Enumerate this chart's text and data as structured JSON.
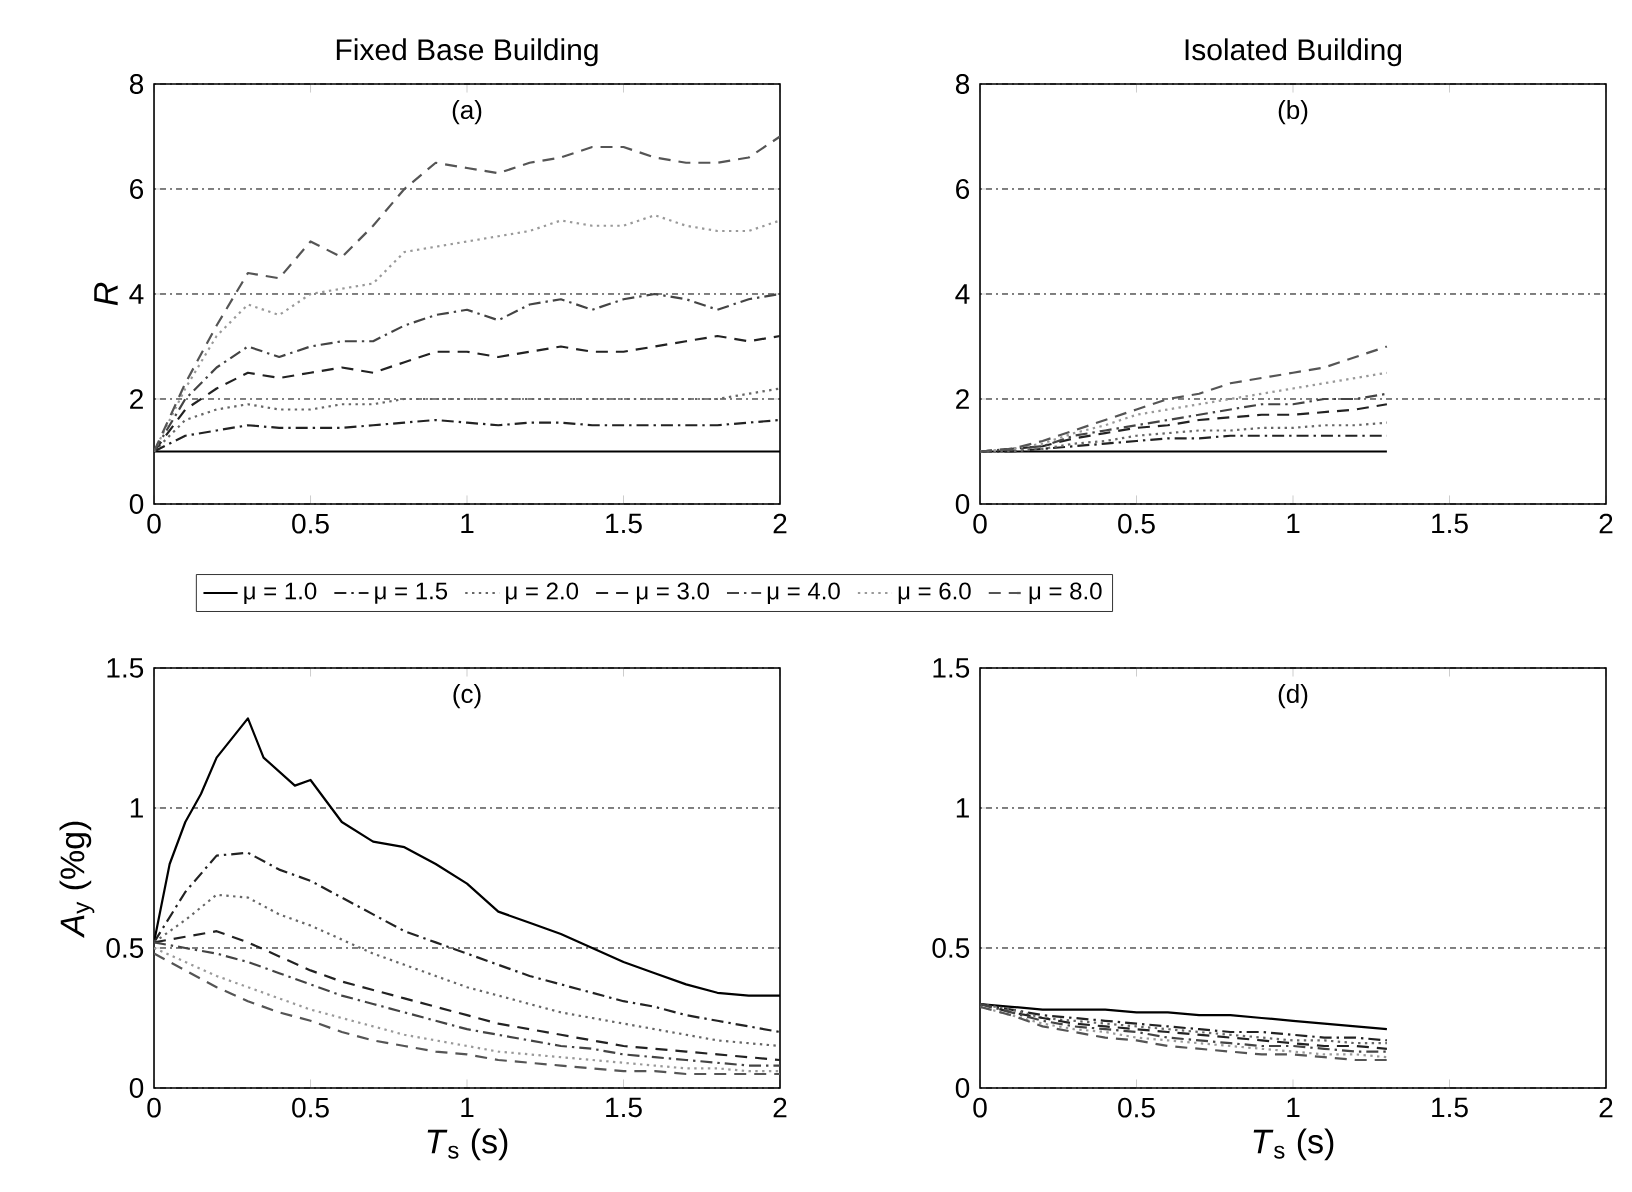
{
  "chart_data": [
    {
      "type": "line",
      "title": "Fixed Base Building",
      "ylabel": "*R*",
      "annotations": [
        "(a)"
      ],
      "xlim": [
        0,
        2
      ],
      "xticks": [
        0,
        0.5,
        1,
        1.5,
        2
      ],
      "ylim": [
        0,
        8
      ],
      "yticks": [
        0,
        2,
        4,
        6,
        8
      ],
      "grid": "y",
      "legend": "bottom",
      "x": [
        0,
        0.1,
        0.2,
        0.3,
        0.4,
        0.5,
        0.6,
        0.7,
        0.8,
        0.9,
        1.0,
        1.1,
        1.2,
        1.3,
        1.4,
        1.5,
        1.6,
        1.7,
        1.8,
        1.9,
        2.0
      ],
      "series": [
        {
          "name": "μ = 1.0",
          "color": "#000000",
          "line_style": "solid",
          "values": [
            1,
            1,
            1,
            1,
            1,
            1,
            1,
            1,
            1,
            1,
            1,
            1,
            1,
            1,
            1,
            1,
            1,
            1,
            1,
            1,
            1
          ]
        },
        {
          "name": "μ = 1.5",
          "color": "#222222",
          "line_style": "dashdot",
          "values": [
            1,
            1.3,
            1.4,
            1.5,
            1.45,
            1.45,
            1.45,
            1.5,
            1.55,
            1.6,
            1.55,
            1.5,
            1.55,
            1.55,
            1.5,
            1.5,
            1.5,
            1.5,
            1.5,
            1.55,
            1.6
          ]
        },
        {
          "name": "μ = 2.0",
          "color": "#666666",
          "line_style": "dotted",
          "values": [
            1,
            1.6,
            1.8,
            1.9,
            1.8,
            1.8,
            1.9,
            1.9,
            2.0,
            2.0,
            2.0,
            2.0,
            2.0,
            2.0,
            2.0,
            2.0,
            2.0,
            2.0,
            2.0,
            2.1,
            2.2
          ]
        },
        {
          "name": "μ = 3.0",
          "color": "#222222",
          "line_style": "dashed",
          "values": [
            1,
            1.8,
            2.2,
            2.5,
            2.4,
            2.5,
            2.6,
            2.5,
            2.7,
            2.9,
            2.9,
            2.8,
            2.9,
            3.0,
            2.9,
            2.9,
            3.0,
            3.1,
            3.2,
            3.1,
            3.2
          ]
        },
        {
          "name": "μ = 4.0",
          "color": "#444444",
          "line_style": "dashdot",
          "values": [
            1,
            2.0,
            2.6,
            3.0,
            2.8,
            3.0,
            3.1,
            3.1,
            3.4,
            3.6,
            3.7,
            3.5,
            3.8,
            3.9,
            3.7,
            3.9,
            4.0,
            3.9,
            3.7,
            3.9,
            4.0
          ]
        },
        {
          "name": "μ = 6.0",
          "color": "#999999",
          "line_style": "dotted",
          "values": [
            1,
            2.2,
            3.2,
            3.8,
            3.6,
            4.0,
            4.1,
            4.2,
            4.8,
            4.9,
            5.0,
            5.1,
            5.2,
            5.4,
            5.3,
            5.3,
            5.5,
            5.3,
            5.2,
            5.2,
            5.4
          ]
        },
        {
          "name": "μ = 8.0",
          "color": "#555555",
          "line_style": "dashed",
          "values": [
            1,
            2.3,
            3.4,
            4.4,
            4.3,
            5.0,
            4.7,
            5.3,
            6.0,
            6.5,
            6.4,
            6.3,
            6.5,
            6.6,
            6.8,
            6.8,
            6.6,
            6.5,
            6.5,
            6.6,
            7.0
          ]
        }
      ]
    },
    {
      "type": "line",
      "title": "Isolated Building",
      "annotations": [
        "(b)"
      ],
      "xlim": [
        0,
        2
      ],
      "xticks": [
        0,
        0.5,
        1,
        1.5,
        2
      ],
      "ylim": [
        0,
        8
      ],
      "yticks": [
        0,
        2,
        4,
        6,
        8
      ],
      "grid": "y",
      "x": [
        0,
        0.1,
        0.2,
        0.3,
        0.4,
        0.5,
        0.6,
        0.7,
        0.8,
        0.9,
        1.0,
        1.1,
        1.2,
        1.3
      ],
      "series": [
        {
          "color": "#000000",
          "line_style": "solid",
          "values": [
            1,
            1,
            1,
            1,
            1,
            1,
            1,
            1,
            1,
            1,
            1,
            1,
            1,
            1
          ]
        },
        {
          "color": "#222222",
          "line_style": "dashdot",
          "values": [
            1.0,
            1.0,
            1.05,
            1.1,
            1.15,
            1.2,
            1.25,
            1.25,
            1.3,
            1.3,
            1.3,
            1.3,
            1.3,
            1.3
          ]
        },
        {
          "color": "#666666",
          "line_style": "dotted",
          "values": [
            1.0,
            1.0,
            1.05,
            1.15,
            1.2,
            1.3,
            1.35,
            1.4,
            1.4,
            1.45,
            1.45,
            1.5,
            1.5,
            1.55
          ]
        },
        {
          "color": "#222222",
          "line_style": "dashed",
          "values": [
            1.0,
            1.05,
            1.1,
            1.25,
            1.35,
            1.45,
            1.5,
            1.6,
            1.65,
            1.7,
            1.7,
            1.75,
            1.8,
            1.9
          ]
        },
        {
          "color": "#444444",
          "line_style": "dashdot",
          "values": [
            1.0,
            1.05,
            1.1,
            1.3,
            1.4,
            1.5,
            1.6,
            1.7,
            1.8,
            1.9,
            1.9,
            2.0,
            2.0,
            2.1
          ]
        },
        {
          "color": "#999999",
          "line_style": "dotted",
          "values": [
            1.0,
            1.05,
            1.15,
            1.35,
            1.5,
            1.7,
            1.8,
            1.9,
            2.0,
            2.1,
            2.2,
            2.3,
            2.4,
            2.5
          ]
        },
        {
          "color": "#555555",
          "line_style": "dashed",
          "values": [
            1.0,
            1.05,
            1.2,
            1.4,
            1.6,
            1.8,
            2.0,
            2.1,
            2.3,
            2.4,
            2.5,
            2.6,
            2.8,
            3.0
          ]
        }
      ]
    },
    {
      "type": "line",
      "xlabel": "*T*$_{s}$ (s)",
      "ylabel": "*A*$_{y}$ (%g)",
      "annotations": [
        "(c)"
      ],
      "xlim": [
        0,
        2
      ],
      "xticks": [
        0,
        0.5,
        1,
        1.5,
        2
      ],
      "ylim": [
        0,
        1.5
      ],
      "yticks": [
        0,
        0.5,
        1,
        1.5
      ],
      "grid": "y",
      "x": [
        0,
        0.1,
        0.2,
        0.3,
        0.4,
        0.5,
        0.6,
        0.7,
        0.8,
        0.9,
        1.0,
        1.1,
        1.2,
        1.3,
        1.4,
        1.5,
        1.6,
        1.7,
        1.8,
        1.9,
        2.0
      ],
      "series": [
        {
          "color": "#000000",
          "line_style": "solid",
          "x": [
            0,
            0.05,
            0.1,
            0.15,
            0.2,
            0.3,
            0.35,
            0.45,
            0.5,
            0.6,
            0.7,
            0.8,
            0.9,
            1.0,
            1.1,
            1.2,
            1.3,
            1.4,
            1.5,
            1.6,
            1.7,
            1.8,
            1.9,
            2.0
          ],
          "values": [
            0.52,
            0.8,
            0.95,
            1.05,
            1.18,
            1.32,
            1.18,
            1.08,
            1.1,
            0.95,
            0.88,
            0.86,
            0.8,
            0.73,
            0.63,
            0.59,
            0.55,
            0.5,
            0.45,
            0.41,
            0.37,
            0.34,
            0.33,
            0.33
          ]
        },
        {
          "color": "#222222",
          "line_style": "dashdot",
          "values": [
            0.52,
            0.7,
            0.83,
            0.84,
            0.78,
            0.74,
            0.68,
            0.62,
            0.56,
            0.52,
            0.48,
            0.44,
            0.4,
            0.37,
            0.34,
            0.31,
            0.29,
            0.26,
            0.24,
            0.22,
            0.2
          ]
        },
        {
          "color": "#666666",
          "line_style": "dotted",
          "values": [
            0.52,
            0.6,
            0.69,
            0.68,
            0.62,
            0.58,
            0.53,
            0.48,
            0.44,
            0.4,
            0.36,
            0.33,
            0.3,
            0.27,
            0.25,
            0.23,
            0.21,
            0.19,
            0.17,
            0.16,
            0.15
          ]
        },
        {
          "color": "#222222",
          "line_style": "dashed",
          "values": [
            0.52,
            0.54,
            0.56,
            0.52,
            0.47,
            0.42,
            0.38,
            0.35,
            0.32,
            0.29,
            0.26,
            0.23,
            0.21,
            0.19,
            0.17,
            0.15,
            0.14,
            0.13,
            0.12,
            0.11,
            0.1
          ]
        },
        {
          "color": "#444444",
          "line_style": "dashdot",
          "values": [
            0.52,
            0.5,
            0.48,
            0.45,
            0.41,
            0.37,
            0.33,
            0.3,
            0.27,
            0.24,
            0.21,
            0.19,
            0.17,
            0.15,
            0.14,
            0.12,
            0.11,
            0.1,
            0.09,
            0.08,
            0.08
          ]
        },
        {
          "color": "#999999",
          "line_style": "dotted",
          "values": [
            0.5,
            0.45,
            0.4,
            0.36,
            0.32,
            0.28,
            0.25,
            0.22,
            0.19,
            0.17,
            0.15,
            0.13,
            0.12,
            0.11,
            0.1,
            0.09,
            0.08,
            0.07,
            0.07,
            0.06,
            0.06
          ]
        },
        {
          "color": "#555555",
          "line_style": "dashed",
          "values": [
            0.48,
            0.42,
            0.36,
            0.31,
            0.27,
            0.24,
            0.2,
            0.17,
            0.15,
            0.13,
            0.12,
            0.1,
            0.09,
            0.08,
            0.07,
            0.06,
            0.06,
            0.05,
            0.05,
            0.05,
            0.05
          ]
        }
      ]
    },
    {
      "type": "line",
      "xlabel": "*T*$_{s}$ (s)",
      "annotations": [
        "(d)"
      ],
      "xlim": [
        0,
        2
      ],
      "xticks": [
        0,
        0.5,
        1,
        1.5,
        2
      ],
      "ylim": [
        0,
        1.5
      ],
      "yticks": [
        0,
        0.5,
        1,
        1.5
      ],
      "grid": "y",
      "x": [
        0,
        0.1,
        0.2,
        0.3,
        0.4,
        0.5,
        0.6,
        0.7,
        0.8,
        0.9,
        1.0,
        1.1,
        1.2,
        1.3
      ],
      "series": [
        {
          "color": "#000000",
          "line_style": "solid",
          "values": [
            0.3,
            0.29,
            0.28,
            0.28,
            0.28,
            0.27,
            0.27,
            0.26,
            0.26,
            0.25,
            0.24,
            0.23,
            0.22,
            0.21
          ]
        },
        {
          "color": "#222222",
          "line_style": "dashdot",
          "values": [
            0.3,
            0.28,
            0.26,
            0.25,
            0.24,
            0.23,
            0.22,
            0.21,
            0.2,
            0.2,
            0.19,
            0.18,
            0.18,
            0.17
          ]
        },
        {
          "color": "#666666",
          "line_style": "dotted",
          "values": [
            0.3,
            0.28,
            0.25,
            0.24,
            0.23,
            0.22,
            0.21,
            0.2,
            0.19,
            0.18,
            0.17,
            0.17,
            0.16,
            0.16
          ]
        },
        {
          "color": "#222222",
          "line_style": "dashed",
          "values": [
            0.3,
            0.27,
            0.25,
            0.23,
            0.22,
            0.21,
            0.2,
            0.19,
            0.18,
            0.17,
            0.16,
            0.15,
            0.15,
            0.14
          ]
        },
        {
          "color": "#444444",
          "line_style": "dashdot",
          "values": [
            0.3,
            0.27,
            0.24,
            0.22,
            0.21,
            0.2,
            0.18,
            0.17,
            0.16,
            0.15,
            0.15,
            0.14,
            0.13,
            0.13
          ]
        },
        {
          "color": "#999999",
          "line_style": "dotted",
          "values": [
            0.29,
            0.26,
            0.23,
            0.21,
            0.2,
            0.18,
            0.17,
            0.16,
            0.15,
            0.14,
            0.13,
            0.12,
            0.12,
            0.11
          ]
        },
        {
          "color": "#555555",
          "line_style": "dashed",
          "values": [
            0.29,
            0.26,
            0.22,
            0.2,
            0.18,
            0.17,
            0.15,
            0.14,
            0.13,
            0.12,
            0.12,
            0.11,
            0.1,
            0.1
          ]
        }
      ]
    }
  ]
}
